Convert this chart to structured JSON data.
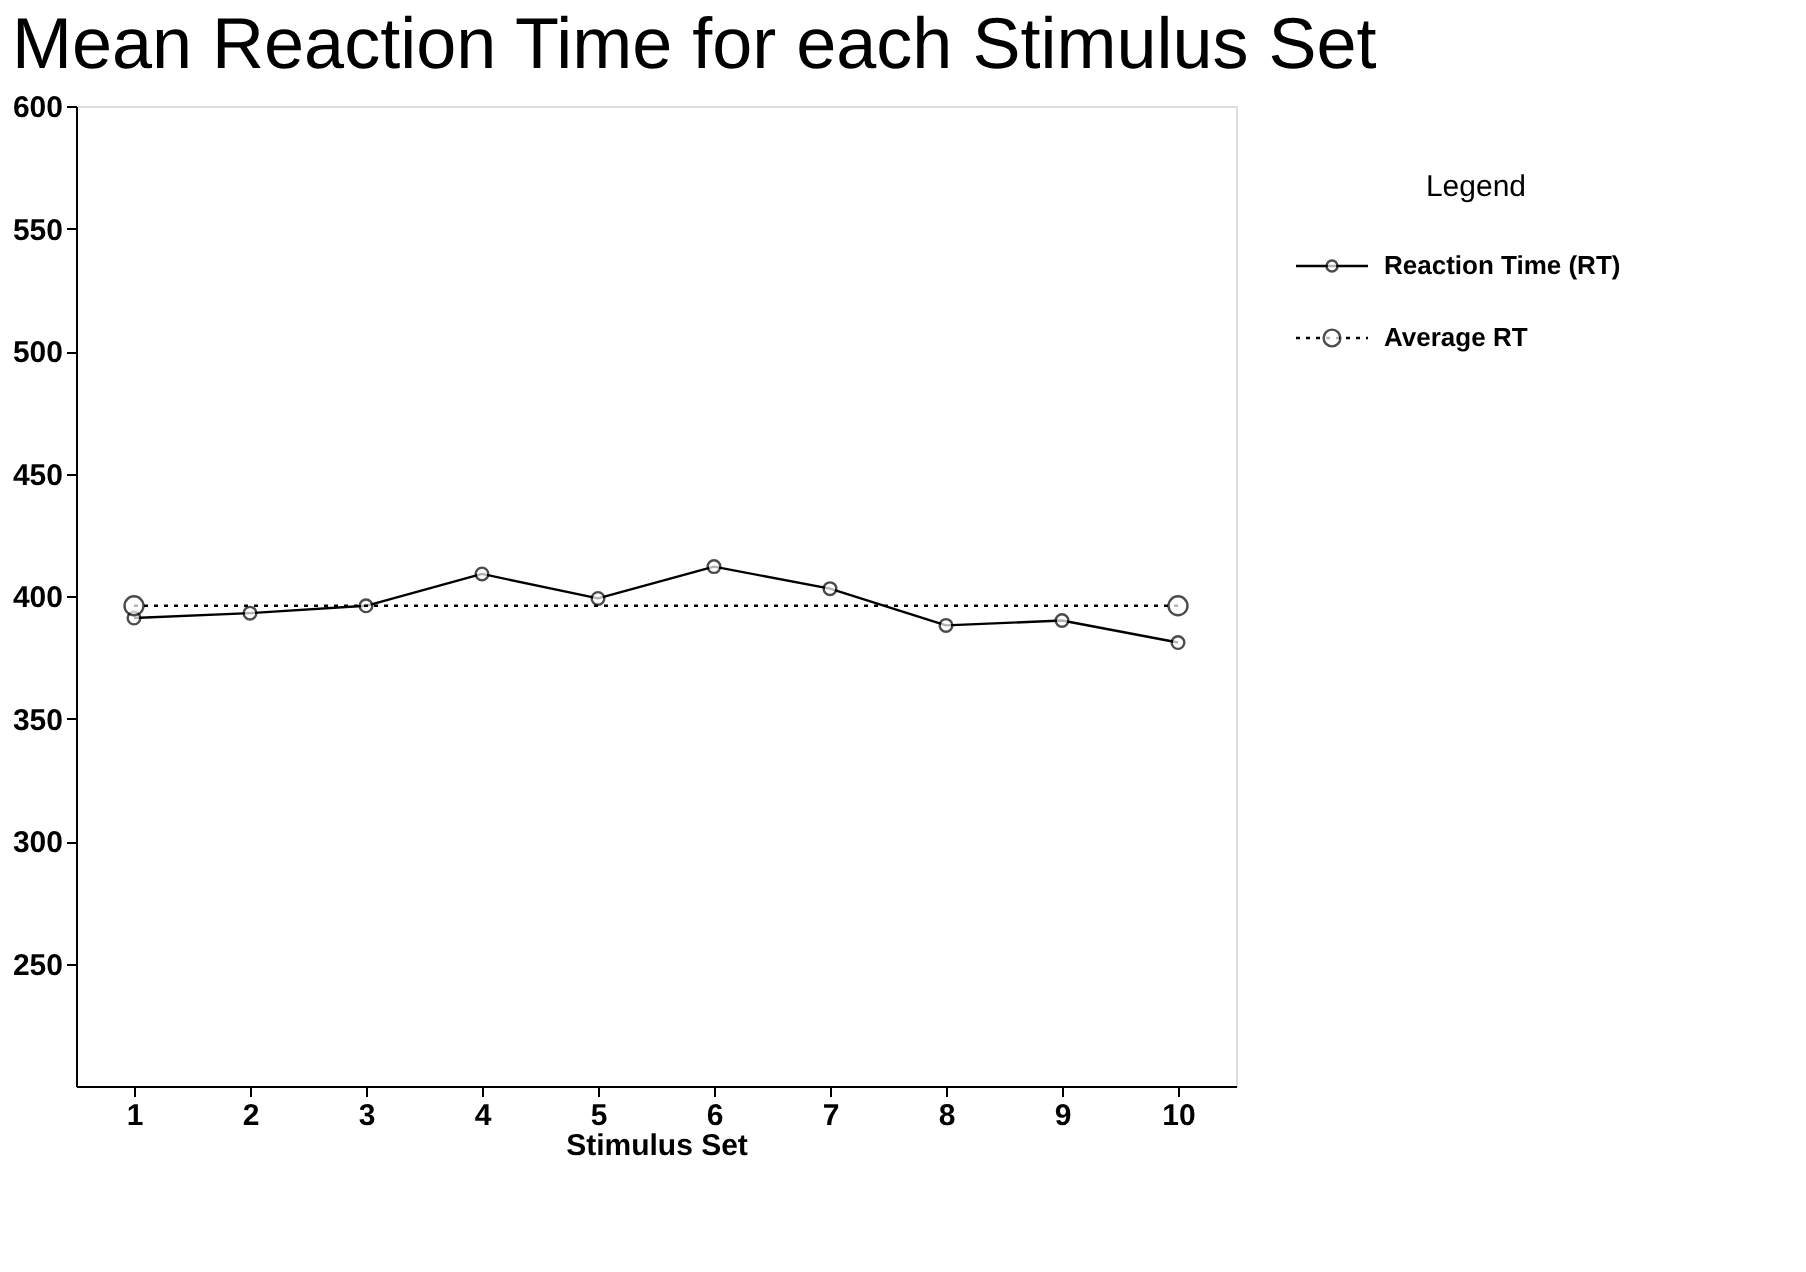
{
  "chart_data": {
    "type": "line",
    "title": "Mean Reaction Time for each Stimulus Set",
    "xlabel": "Stimulus Set",
    "legend_title": "Legend",
    "x": [
      1,
      2,
      3,
      4,
      5,
      6,
      7,
      8,
      9,
      10
    ],
    "xlim": [
      0.5,
      10.5
    ],
    "xticks": [
      1,
      2,
      3,
      4,
      5,
      6,
      7,
      8,
      9,
      10
    ],
    "ylim": [
      200,
      600
    ],
    "yticks": [
      250,
      300,
      350,
      400,
      450,
      500,
      550,
      600
    ],
    "grid": false,
    "legend": "right",
    "marker": "circle",
    "series": [
      {
        "name": "Reaction Time (RT)",
        "color": "#000000",
        "line_style": "solid",
        "values": [
          391,
          393,
          396,
          409,
          399,
          412,
          403,
          388,
          390,
          381
        ]
      },
      {
        "name": "Average RT",
        "color": "#000000",
        "line_style": "dotted",
        "type": "line",
        "x": [
          1,
          10
        ],
        "values": [
          396,
          396
        ]
      }
    ]
  }
}
